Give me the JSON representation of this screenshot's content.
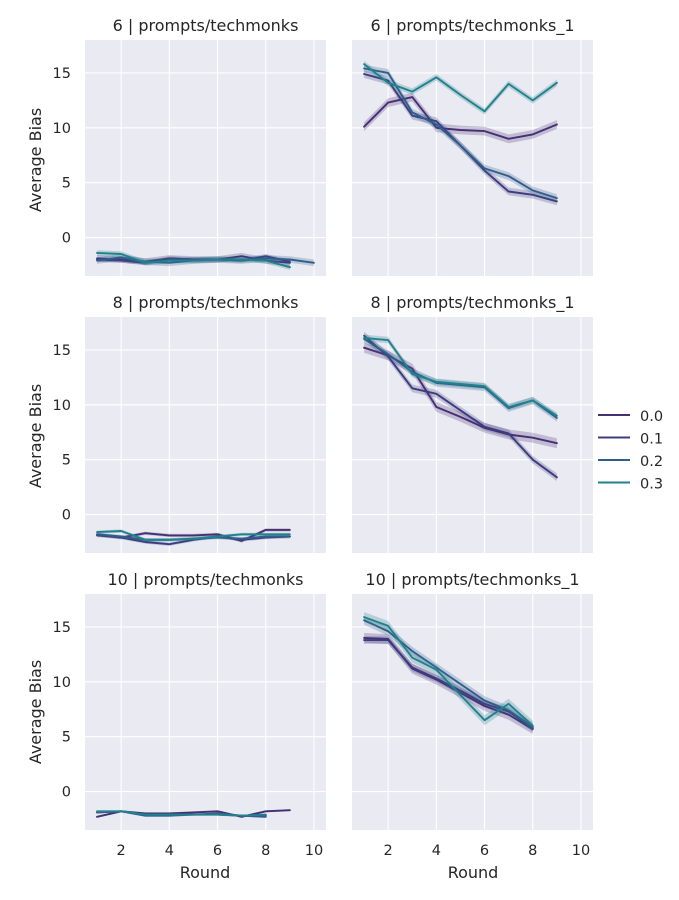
{
  "chart_data": {
    "type": "line",
    "xlabel": "Round",
    "ylabel": "Average Bias",
    "xlim": [
      0.5,
      10.5
    ],
    "ylim": [
      -3.5,
      18.0
    ],
    "xticks": [
      2,
      4,
      6,
      8,
      10
    ],
    "yticks": [
      0,
      5,
      10,
      15
    ],
    "grid": true,
    "legend": {
      "placement": "right",
      "entries": [
        {
          "name": "0.0",
          "color": "#462f75"
        },
        {
          "name": "0.1",
          "color": "#3c3c7e"
        },
        {
          "name": "0.2",
          "color": "#2f5e8c"
        },
        {
          "name": "0.3",
          "color": "#21818c"
        }
      ]
    },
    "panels": [
      {
        "title": "6 | prompts/techmonks",
        "series": [
          {
            "name": "0.0",
            "x": [
              1,
              2,
              3,
              4,
              5,
              6,
              7,
              8,
              9
            ],
            "y": [
              -1.9,
              -2.0,
              -2.2,
              -1.9,
              -2.0,
              -2.0,
              -1.7,
              -2.1,
              -2.3
            ],
            "band": 0.3
          },
          {
            "name": "0.1",
            "x": [
              1,
              2,
              3,
              4,
              5,
              6,
              7,
              8,
              9
            ],
            "y": [
              -2.0,
              -2.1,
              -2.3,
              -1.9,
              -2.0,
              -2.0,
              -2.1,
              -1.7,
              -2.2
            ],
            "band": 0.2
          },
          {
            "name": "0.2",
            "x": [
              1,
              2,
              3,
              4,
              5,
              6,
              7,
              8,
              9,
              10
            ],
            "y": [
              -2.1,
              -1.8,
              -2.2,
              -2.3,
              -2.1,
              -2.0,
              -2.1,
              -1.9,
              -2.0,
              -2.3
            ],
            "band": 0.3
          },
          {
            "name": "0.3",
            "x": [
              1,
              2,
              3,
              4,
              5,
              6,
              7,
              8,
              9
            ],
            "y": [
              -1.4,
              -1.5,
              -2.3,
              -2.1,
              -2.1,
              -2.0,
              -2.0,
              -2.1,
              -2.7
            ],
            "band": 0.25
          }
        ]
      },
      {
        "title": "6 | prompts/techmonks_1",
        "series": [
          {
            "name": "0.0",
            "x": [
              1,
              2,
              3,
              4,
              5,
              6,
              7,
              8,
              9
            ],
            "y": [
              10.1,
              12.3,
              12.8,
              10.0,
              9.8,
              9.7,
              9.0,
              9.4,
              10.3
            ],
            "band": 0.4
          },
          {
            "name": "0.1",
            "x": [
              1,
              2,
              3,
              4,
              5,
              6,
              7,
              8,
              9
            ],
            "y": [
              14.9,
              14.3,
              11.1,
              10.6,
              8.4,
              6.1,
              4.2,
              3.9,
              3.3
            ],
            "band": 0.35
          },
          {
            "name": "0.2",
            "x": [
              1,
              2,
              3,
              4,
              5,
              6,
              7,
              8,
              9
            ],
            "y": [
              15.4,
              15.0,
              11.4,
              10.3,
              8.4,
              6.3,
              5.6,
              4.3,
              3.6
            ],
            "band": 0.35
          },
          {
            "name": "0.3",
            "x": [
              1,
              2,
              3,
              4,
              5,
              6,
              7,
              8,
              9
            ],
            "y": [
              15.8,
              14.1,
              13.3,
              14.6,
              13.0,
              11.5,
              14.0,
              12.5,
              14.1
            ],
            "band": 0.3
          }
        ]
      },
      {
        "title": "8 | prompts/techmonks",
        "series": [
          {
            "name": "0.0",
            "x": [
              1,
              2,
              3,
              4,
              5,
              6,
              7,
              8,
              9
            ],
            "y": [
              -1.8,
              -2.1,
              -1.7,
              -1.9,
              -1.9,
              -1.8,
              -2.4,
              -1.4,
              -1.4
            ],
            "band": 0.15
          },
          {
            "name": "0.1",
            "x": [
              1,
              2,
              3,
              4,
              5,
              6,
              7,
              8,
              9
            ],
            "y": [
              -1.9,
              -2.1,
              -2.5,
              -2.7,
              -2.3,
              -2.0,
              -2.3,
              -2.1,
              -2.0
            ],
            "band": 0.15
          },
          {
            "name": "0.2",
            "x": [
              1,
              2,
              3,
              4,
              5,
              6,
              7,
              8,
              9
            ],
            "y": [
              -1.8,
              -2.0,
              -2.3,
              -2.3,
              -2.2,
              -2.1,
              -2.2,
              -2.0,
              -2.0
            ],
            "band": 0.15
          },
          {
            "name": "0.3",
            "x": [
              1,
              2,
              3,
              4,
              5,
              6,
              7,
              8,
              9
            ],
            "y": [
              -1.6,
              -1.5,
              -2.3,
              -2.3,
              -2.2,
              -2.0,
              -1.8,
              -1.8,
              -1.8
            ],
            "band": 0.15
          }
        ]
      },
      {
        "title": "8 | prompts/techmonks_1",
        "series": [
          {
            "name": "0.0",
            "x": [
              1,
              2,
              3,
              4,
              5,
              6,
              7,
              8,
              9
            ],
            "y": [
              15.2,
              14.5,
              13.3,
              9.8,
              8.9,
              7.9,
              7.3,
              7.0,
              6.5
            ],
            "band": 0.45
          },
          {
            "name": "0.1",
            "x": [
              1,
              2,
              3,
              4,
              5,
              6,
              7,
              8,
              9
            ],
            "y": [
              16.3,
              14.4,
              11.5,
              11.0,
              9.5,
              8.0,
              7.4,
              5.0,
              3.4
            ],
            "band": 0.35
          },
          {
            "name": "0.2",
            "x": [
              1,
              2,
              3,
              4,
              5,
              6,
              7,
              8,
              9
            ],
            "y": [
              16.0,
              14.6,
              13.0,
              12.0,
              11.8,
              11.6,
              9.7,
              10.4,
              8.8
            ],
            "band": 0.35
          },
          {
            "name": "0.3",
            "x": [
              1,
              2,
              3,
              4,
              5,
              6,
              7,
              8,
              9
            ],
            "y": [
              16.1,
              15.9,
              12.8,
              12.1,
              11.9,
              11.7,
              9.8,
              10.4,
              9.0
            ],
            "band": 0.3
          }
        ]
      },
      {
        "title": "10 | prompts/techmonks",
        "series": [
          {
            "name": "0.0",
            "x": [
              1,
              2,
              3,
              4,
              5,
              6,
              7,
              8,
              9
            ],
            "y": [
              -2.3,
              -1.8,
              -2.0,
              -2.0,
              -1.9,
              -1.8,
              -2.3,
              -1.8,
              -1.7
            ],
            "band": 0.1
          },
          {
            "name": "0.1",
            "x": [
              1,
              2,
              3,
              4,
              5,
              6,
              7,
              8
            ],
            "y": [
              -1.9,
              -1.8,
              -2.1,
              -2.1,
              -2.1,
              -2.1,
              -2.2,
              -2.2
            ],
            "band": 0.1
          },
          {
            "name": "0.2",
            "x": [
              1,
              2,
              3,
              4,
              5,
              6,
              7,
              8
            ],
            "y": [
              -1.9,
              -1.8,
              -2.2,
              -2.2,
              -2.1,
              -2.0,
              -2.2,
              -2.3
            ],
            "band": 0.1
          },
          {
            "name": "0.3",
            "x": [
              1,
              2,
              3,
              4,
              5,
              6,
              7,
              8
            ],
            "y": [
              -1.8,
              -1.8,
              -2.1,
              -2.1,
              -2.1,
              -2.1,
              -2.2,
              -2.1
            ],
            "band": 0.1
          }
        ]
      },
      {
        "title": "10 | prompts/techmonks_1",
        "series": [
          {
            "name": "0.0",
            "x": [
              1,
              2,
              3,
              4,
              5,
              6,
              7,
              8
            ],
            "y": [
              14.0,
              13.9,
              11.2,
              10.2,
              9.0,
              7.8,
              7.0,
              5.7
            ],
            "band": 0.45
          },
          {
            "name": "0.1",
            "x": [
              1,
              2,
              3,
              4,
              5,
              6,
              7,
              8
            ],
            "y": [
              13.8,
              13.8,
              11.3,
              10.3,
              9.2,
              8.0,
              7.3,
              5.8
            ],
            "band": 0.35
          },
          {
            "name": "0.2",
            "x": [
              1,
              2,
              3,
              4,
              5,
              6,
              7,
              8
            ],
            "y": [
              15.6,
              14.6,
              12.8,
              11.3,
              9.8,
              8.3,
              7.4,
              5.9
            ],
            "band": 0.4
          },
          {
            "name": "0.3",
            "x": [
              1,
              2,
              3,
              4,
              5,
              6,
              7,
              8
            ],
            "y": [
              15.9,
              15.1,
              12.2,
              11.1,
              8.8,
              6.5,
              8.0,
              6.0
            ],
            "band": 0.45
          }
        ]
      }
    ]
  }
}
